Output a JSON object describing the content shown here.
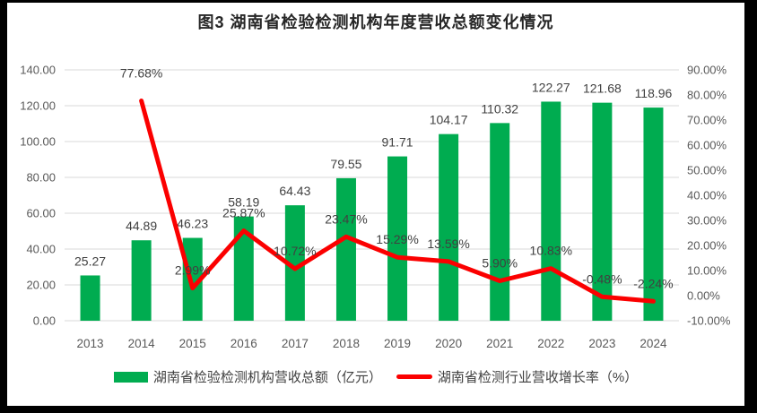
{
  "chart_data": {
    "type": "bar+line",
    "title": "图3 湖南省检验检测机构年度营收总额变化情况",
    "categories": [
      "2013",
      "2014",
      "2015",
      "2016",
      "2017",
      "2018",
      "2019",
      "2020",
      "2021",
      "2022",
      "2023",
      "2024"
    ],
    "series": [
      {
        "name": "湖南省检验检测机构营收总额（亿元）",
        "type": "bar",
        "axis": "left",
        "values": [
          25.27,
          44.89,
          46.23,
          58.19,
          64.43,
          79.55,
          91.71,
          104.17,
          110.32,
          122.27,
          121.68,
          118.96
        ],
        "labels": [
          "25.27",
          "44.89",
          "46.23",
          "58.19",
          "64.43",
          "79.55",
          "91.71",
          "104.17",
          "110.32",
          "122.27",
          "121.68",
          "118.96"
        ]
      },
      {
        "name": "湖南省检测行业营收增长率（%）",
        "type": "line",
        "axis": "right",
        "start_index": 1,
        "values": [
          77.68,
          2.99,
          25.87,
          10.72,
          23.47,
          15.29,
          13.59,
          5.9,
          10.83,
          -0.48,
          -2.24
        ],
        "labels": [
          "77.68%",
          "2.99%",
          "25.87%",
          "10.72%",
          "23.47%",
          "15.29%",
          "13.59%",
          "5.90%",
          "10.83%",
          "-0.48%",
          "-2.24%"
        ]
      }
    ],
    "left_axis": {
      "min": 0,
      "max": 140,
      "step": 20,
      "tick_labels": [
        "0.00",
        "20.00",
        "40.00",
        "60.00",
        "80.00",
        "100.00",
        "120.00",
        "140.00"
      ]
    },
    "right_axis": {
      "min": -10,
      "max": 90,
      "step": 10,
      "tick_labels": [
        "-10.00%",
        "0.00%",
        "10.00%",
        "20.00%",
        "30.00%",
        "40.00%",
        "50.00%",
        "60.00%",
        "70.00%",
        "80.00%",
        "90.00%"
      ]
    },
    "grid": true,
    "legend_position": "bottom"
  },
  "colors": {
    "bar": "#00AC50",
    "line": "#FB0000",
    "grid": "#D9D9D9",
    "tick_text": "#595959",
    "label_text": "#404040",
    "title_text": "#262626",
    "background": "#FFFFFF",
    "frame": "#000000"
  }
}
